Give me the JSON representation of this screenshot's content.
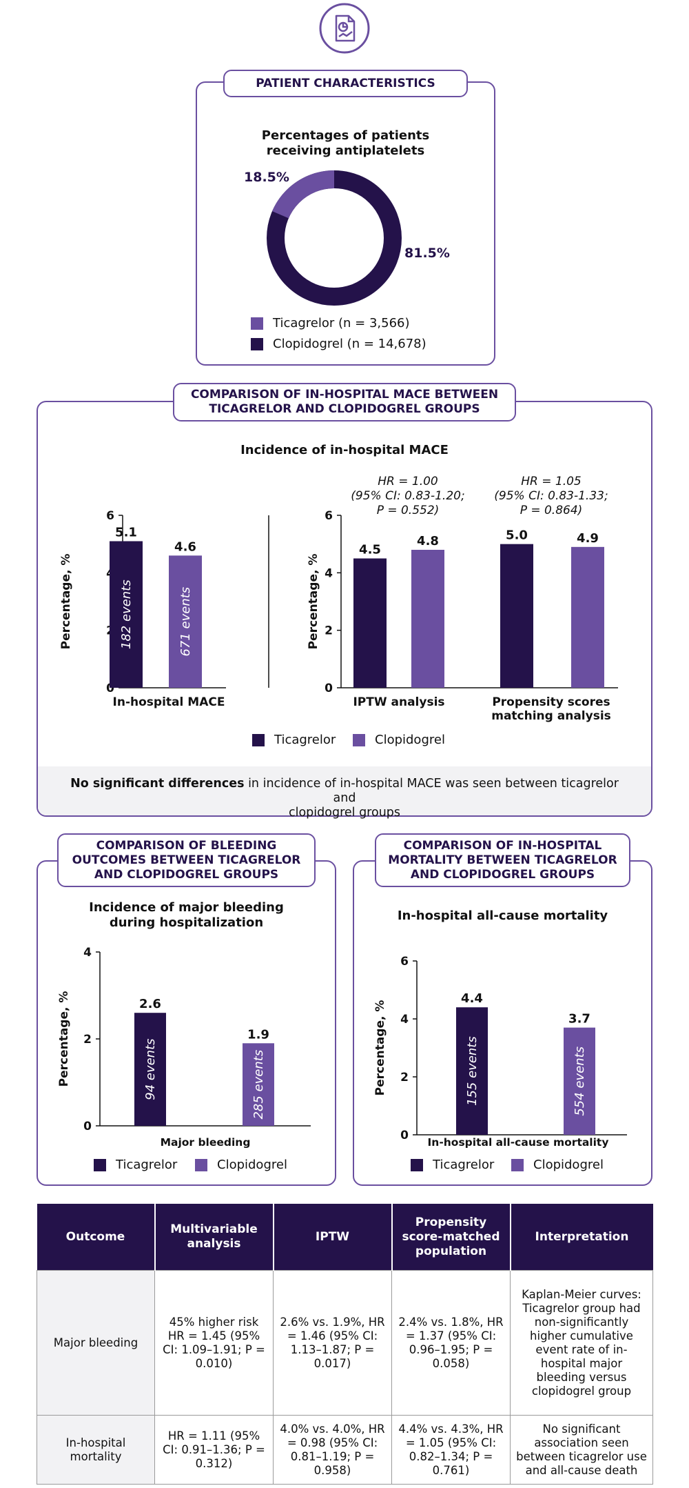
{
  "colors": {
    "ticagrelor": "#24124a",
    "clopidogrel": "#6a4fa0",
    "border": "#6a4fa0"
  },
  "top_icon": "document-chart-icon",
  "patient": {
    "header": "PATIENT CHARACTERISTICS",
    "title_line1": "Percentages of patients",
    "title_line2": "receiving antiplatelets",
    "label_ticagrelor": "18.5%",
    "label_clopidogrel": "81.5%",
    "legend_ticagrelor": "Ticagrelor (n = 3,566)",
    "legend_clopidogrel": "Clopidogrel (n = 14,678)"
  },
  "mace": {
    "header_line1": "COMPARISON OF IN-HOSPITAL MACE BETWEEN",
    "header_line2": "TICAGRELOR AND CLOPIDOGREL GROUPS",
    "title": "Incidence of in-hospital MACE",
    "ylabel": "Percentage, %",
    "hr_iptw": [
      "HR = 1.00",
      "(95% CI: 0.83-1.20;",
      "P = 0.552)"
    ],
    "hr_psm": [
      "HR = 1.05",
      "(95% CI: 0.83-1.33;",
      "P = 0.864)"
    ],
    "legend_ticagrelor": "Ticagrelor",
    "legend_clopidogrel": "Clopidogrel",
    "note_bold": "No significant differences",
    "note_rest": " in incidence of in-hospital MACE was seen between ticagrelor and",
    "note_line2": "clopidogrel groups"
  },
  "bleeding": {
    "header_line1": "COMPARISON OF BLEEDING",
    "header_line2": "OUTCOMES BETWEEN TICAGRELOR",
    "header_line3": "AND CLOPIDOGREL GROUPS",
    "title_line1": "Incidence of major bleeding",
    "title_line2": "during hospitalization",
    "ylabel": "Percentage, %",
    "legend_ticagrelor": "Ticagrelor",
    "legend_clopidogrel": "Clopidogrel"
  },
  "mortality": {
    "header_line1": "COMPARISON OF IN-HOSPITAL",
    "header_line2": "MORTALITY BETWEEN TICAGRELOR",
    "header_line3": "AND CLOPIDOGREL GROUPS",
    "title": "In-hospital all-cause mortality",
    "ylabel": "Percentage, %",
    "legend_ticagrelor": "Ticagrelor",
    "legend_clopidogrel": "Clopidogrel"
  },
  "chart_data": [
    {
      "type": "pie",
      "title": "Percentages of patients receiving antiplatelets",
      "categories": [
        "Ticagrelor (n = 3,566)",
        "Clopidogrel (n = 14,678)"
      ],
      "values": [
        18.5,
        81.5
      ]
    },
    {
      "type": "bar",
      "title": "Incidence of in-hospital MACE",
      "categories": [
        "In-hospital MACE"
      ],
      "series": [
        {
          "name": "Ticagrelor",
          "values": [
            5.1
          ],
          "labels": [
            "182 events"
          ]
        },
        {
          "name": "Clopidogrel",
          "values": [
            4.6
          ],
          "labels": [
            "671 events"
          ]
        }
      ],
      "ylabel": "Percentage, %",
      "ylim": [
        0,
        6
      ],
      "yticks": [
        "0",
        "2",
        "4",
        "6"
      ]
    },
    {
      "type": "bar",
      "categories": [
        "IPTW analysis",
        "Propensity scores matching analysis"
      ],
      "series": [
        {
          "name": "Ticagrelor",
          "values": [
            4.5,
            5.0
          ]
        },
        {
          "name": "Clopidogrel",
          "values": [
            4.8,
            4.9
          ]
        }
      ],
      "ylabel": "Percentage, %",
      "ylim": [
        0,
        6
      ],
      "yticks": [
        "0",
        "2",
        "4",
        "6"
      ]
    },
    {
      "type": "bar",
      "title": "Incidence of major bleeding during hospitalization",
      "categories": [
        "Major bleeding"
      ],
      "series": [
        {
          "name": "Ticagrelor",
          "values": [
            2.6
          ],
          "labels": [
            "94 events"
          ]
        },
        {
          "name": "Clopidogrel",
          "values": [
            1.9
          ],
          "labels": [
            "285 events"
          ]
        }
      ],
      "ylabel": "Percentage, %",
      "ylim": [
        0,
        4
      ],
      "yticks": [
        "0",
        "2",
        "4"
      ]
    },
    {
      "type": "bar",
      "title": "In-hospital all-cause mortality",
      "categories": [
        "In-hospital all-cause mortality"
      ],
      "series": [
        {
          "name": "Ticagrelor",
          "values": [
            4.4
          ],
          "labels": [
            "155 events"
          ]
        },
        {
          "name": "Clopidogrel",
          "values": [
            3.7
          ],
          "labels": [
            "554 events"
          ]
        }
      ],
      "ylabel": "Percentage, %",
      "ylim": [
        0,
        6
      ],
      "yticks": [
        "0",
        "2",
        "4",
        "6"
      ]
    }
  ],
  "table": {
    "headers": [
      "Outcome",
      "Multivariable analysis",
      "IPTW",
      "Propensity score-matched population",
      "Interpretation"
    ],
    "rows": [
      {
        "outcome": "Major bleeding",
        "multivariable": "45% higher risk HR = 1.45 (95% CI: 1.09–1.91; P = 0.010)",
        "iptw": "2.6% vs. 1.9%, HR = 1.46 (95% CI: 1.13–1.87; P = 0.017)",
        "psm": "2.4% vs. 1.8%, HR = 1.37 (95% CI: 0.96–1.95; P = 0.058)",
        "interpretation": "Kaplan-Meier curves: Ticagrelor group had non-significantly higher cumulative event rate of in-hospital major bleeding versus clopidogrel group"
      },
      {
        "outcome": "In-hospital mortality",
        "multivariable": "HR = 1.11 (95% CI: 0.91–1.36; P = 0.312)",
        "iptw": "4.0% vs. 4.0%, HR = 0.98 (95% CI: 0.81–1.19; P = 0.958)",
        "psm": "4.4% vs. 4.3%, HR = 1.05 (95% CI: 0.82–1.34; P = 0.761)",
        "interpretation": "No significant association seen between ticagrelor use and all-cause death"
      }
    ]
  }
}
